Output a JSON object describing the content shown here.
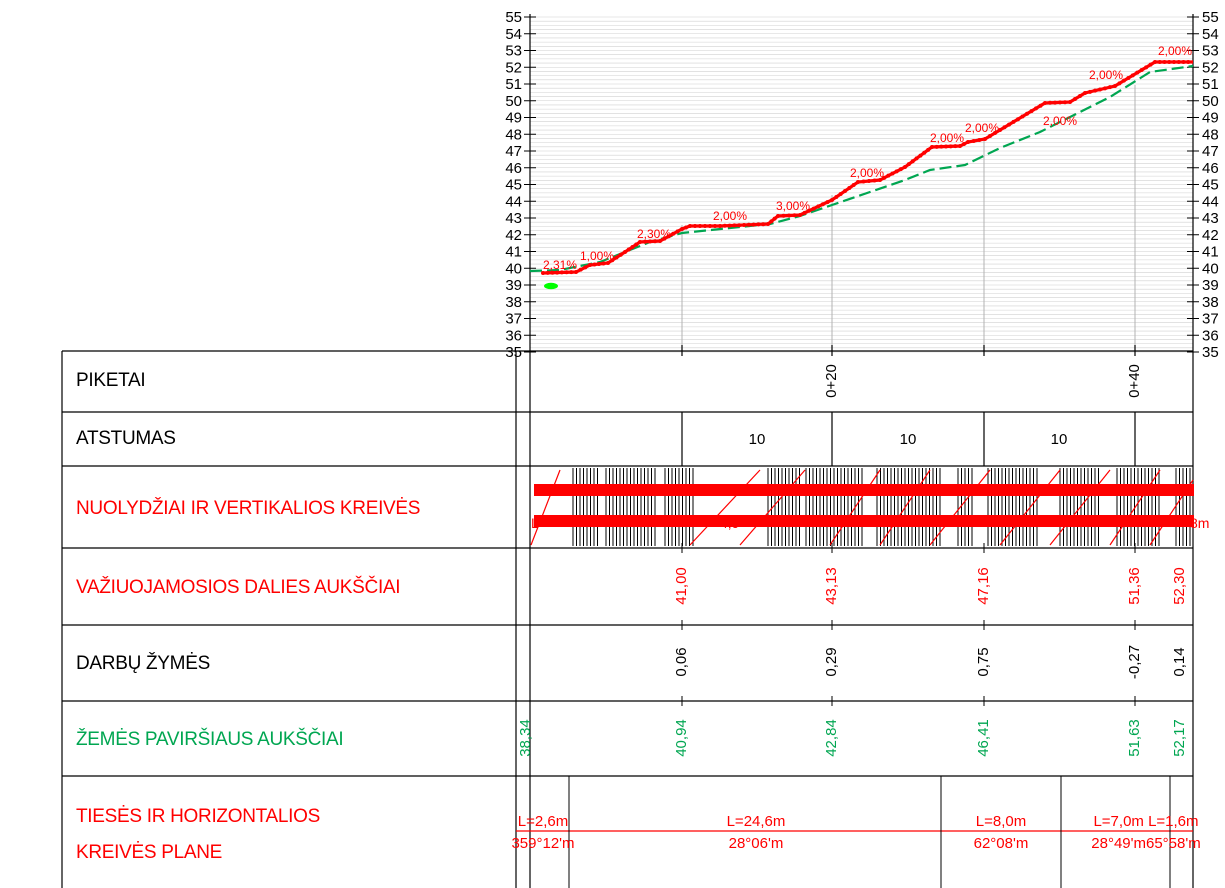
{
  "colors": {
    "design_line": "#ff0000",
    "ground_line": "#00a651",
    "grid": "#b3b3b3",
    "frame": "#000000"
  },
  "profile": {
    "elevation_ticks": [
      "35",
      "36",
      "37",
      "38",
      "39",
      "40",
      "41",
      "42",
      "43",
      "44",
      "45",
      "46",
      "47",
      "48",
      "49",
      "50",
      "51",
      "52",
      "53",
      "54",
      "55"
    ],
    "slope_labels": [
      "2,31%",
      "1,00%",
      "2,30%",
      "2,00%",
      "3,00%",
      "2,00%",
      "2,00%",
      "2,00%",
      "2,00%",
      "2,00%",
      "2,00%"
    ]
  },
  "rows": {
    "piketai": {
      "label": "PIKETAI",
      "stations": [
        "0+20",
        "0+40"
      ]
    },
    "atstumas": {
      "label": "ATSTUMAS",
      "distances": [
        "10",
        "10",
        "10"
      ]
    },
    "nuolydziai": {
      "label": "NUOLYDŽIAI IR VERTIKALIOS KREIVĖS",
      "fragments": [
        "L=",
        "4,9",
        "8m"
      ]
    },
    "vaziuojamosios": {
      "label": "VAŽIUOJAMOSIOS DALIES AUKŠČIAI",
      "values": [
        "41,00",
        "43,13",
        "47,16",
        "51,36",
        "52,30"
      ]
    },
    "darbu": {
      "label": "DARBŲ ŽYMĖS",
      "values": [
        "0,06",
        "0,29",
        "0,75",
        "-0,27",
        "0,14"
      ]
    },
    "zemes": {
      "label": "ŽEMĖS PAVIRŠIAUS AUKŠČIAI",
      "values": [
        "38,34",
        "40,94",
        "42,84",
        "46,41",
        "51,63",
        "52,17"
      ]
    },
    "tieses": {
      "label_line1": "TIESĖS IR HORIZONTALIOS",
      "label_line2": "KREIVĖS PLANE",
      "lengths": [
        "L=2,6m",
        "L=24,6m",
        "L=8,0m",
        "L=7,0m L=1,6m"
      ],
      "angles": [
        "359°12'm",
        "28°06'm",
        "62°08'm",
        "28°49'm65°58'm"
      ]
    }
  }
}
